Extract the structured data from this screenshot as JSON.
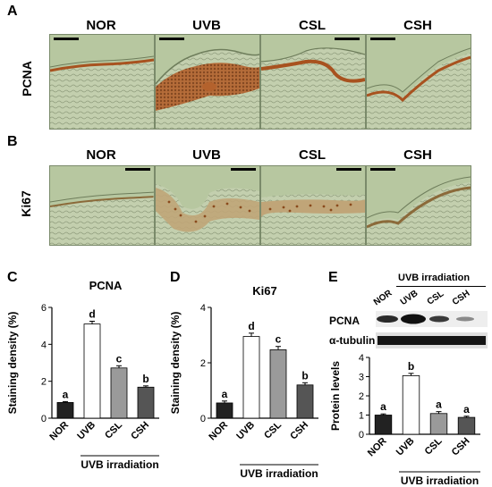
{
  "figure": {
    "panel_letters": [
      "A",
      "B",
      "C",
      "D",
      "E"
    ],
    "row_labels": {
      "a": "PCNA",
      "b": "Ki67"
    },
    "group_labels": [
      "NOR",
      "UVB",
      "CSL",
      "CSH"
    ],
    "uvb_irradiation": "UVB irradiation",
    "western_blot": {
      "pcna_label": "PCNA",
      "tubulin_label": "α-tubulin",
      "header": "UVB irradiation"
    },
    "colors": {
      "tissue_bg": "#b9c9a2",
      "stain": "#a8521f",
      "bar_nor": "#222222",
      "bar_uvb": "#ffffff",
      "bar_csl": "#9a9a9a",
      "bar_csh": "#555555"
    }
  },
  "chart_data": [
    {
      "type": "bar",
      "title": "PCNA",
      "ylabel": "Staining density (%)",
      "categories": [
        "NOR",
        "UVB",
        "CSL",
        "CSH"
      ],
      "values": [
        0.85,
        5.1,
        2.72,
        1.68
      ],
      "errors": [
        0.05,
        0.15,
        0.12,
        0.07
      ],
      "letters": [
        "a",
        "d",
        "c",
        "b"
      ],
      "ylim": [
        0,
        6
      ],
      "yticks": [
        "0",
        "2",
        "4",
        "6"
      ],
      "xgroup": "UVB irradiation"
    },
    {
      "type": "bar",
      "title": "Ki67",
      "ylabel": "Staining density (%)",
      "categories": [
        "NOR",
        "UVB",
        "CSL",
        "CSH"
      ],
      "values": [
        0.55,
        2.95,
        2.47,
        1.2
      ],
      "errors": [
        0.07,
        0.12,
        0.12,
        0.08
      ],
      "letters": [
        "a",
        "d",
        "c",
        "b"
      ],
      "ylim": [
        0,
        4
      ],
      "yticks": [
        "0",
        "2",
        "4"
      ],
      "xgroup": "UVB irradiation"
    },
    {
      "type": "bar",
      "title": "",
      "ylabel": "Protein levels",
      "categories": [
        "NOR",
        "UVB",
        "CSL",
        "CSH"
      ],
      "values": [
        1.0,
        3.05,
        1.08,
        0.88
      ],
      "errors": [
        0.06,
        0.12,
        0.1,
        0.06
      ],
      "letters": [
        "a",
        "b",
        "a",
        "a"
      ],
      "ylim": [
        0,
        4
      ],
      "yticks": [
        "0",
        "1",
        "2",
        "3",
        "4"
      ],
      "xgroup": "UVB irradiation"
    }
  ]
}
